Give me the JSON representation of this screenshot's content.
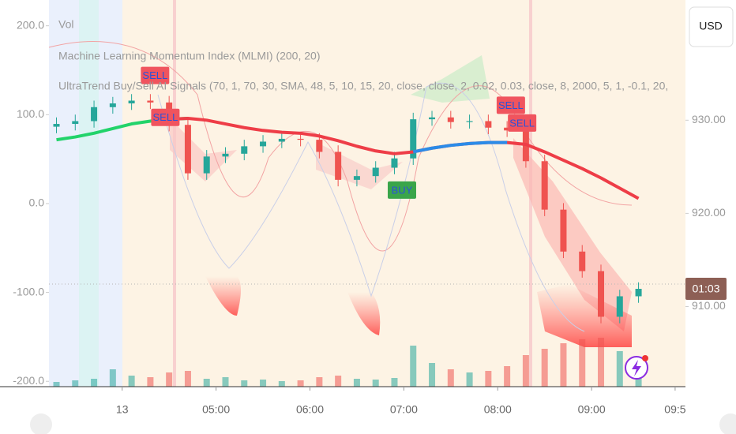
{
  "chart_data": {
    "type": "candlestick",
    "legend_lines": [
      "Vol",
      "Machine Learning Momentum Index (MLMI) (200, 20)",
      "UltraTrend Buy/Sell AI Signals (70, 1, 70, 30, SMA, 48, 5, 10, 15, 20, close, close, 2, 0.02, 0.03, close, 8, 2000, 5, 1, -0.1, 20,"
    ],
    "currency": "USD",
    "countdown": "01:03",
    "x": [
      3.3,
      3.5,
      3.7,
      3.9,
      4.1,
      4.3,
      4.5,
      4.7,
      4.9,
      5.1,
      5.3,
      5.5,
      5.7,
      5.9,
      6.1,
      6.3,
      6.5,
      6.7,
      6.9,
      7.1,
      7.3,
      7.5,
      7.7,
      7.9,
      8.1,
      8.3,
      8.5,
      8.7,
      8.9,
      9.1,
      9.3,
      9.5
    ],
    "open": [
      929.3,
      929.6,
      929.9,
      931.4,
      931.8,
      932.1,
      931.9,
      929.5,
      924.3,
      926.1,
      926.4,
      927.2,
      927.7,
      928.0,
      927.9,
      926.6,
      923.6,
      924.0,
      924.9,
      925.9,
      930.1,
      930.3,
      929.8,
      929.9,
      929.2,
      928.9,
      925.6,
      920.4,
      915.9,
      913.8,
      908.9,
      911.1
    ],
    "high": [
      930.3,
      930.6,
      932.1,
      932.5,
      932.8,
      932.8,
      932.6,
      930.2,
      926.8,
      927.1,
      927.9,
      928.4,
      928.7,
      928.7,
      928.6,
      927.3,
      924.7,
      925.6,
      926.6,
      930.8,
      931.0,
      931.0,
      930.6,
      930.6,
      929.9,
      929.6,
      926.3,
      921.1,
      916.6,
      914.5,
      911.8,
      912.6
    ],
    "low": [
      928.6,
      928.9,
      929.2,
      930.7,
      931.1,
      931.2,
      928.8,
      923.6,
      923.6,
      925.4,
      925.7,
      926.5,
      927.0,
      927.2,
      925.9,
      922.9,
      922.9,
      923.3,
      924.2,
      925.2,
      929.4,
      929.1,
      929.1,
      928.5,
      928.2,
      924.9,
      919.7,
      915.2,
      913.1,
      908.2,
      908.2,
      910.4
    ],
    "close": [
      929.6,
      929.9,
      931.4,
      931.8,
      932.1,
      931.9,
      929.5,
      924.3,
      926.1,
      926.4,
      927.2,
      927.7,
      928.0,
      927.9,
      926.6,
      923.6,
      924.0,
      924.9,
      925.9,
      930.1,
      930.3,
      929.8,
      929.9,
      929.2,
      928.9,
      925.6,
      920.4,
      915.9,
      913.8,
      908.9,
      911.1,
      911.9
    ],
    "volume": [
      6,
      8,
      10,
      22,
      14,
      12,
      18,
      20,
      10,
      12,
      8,
      9,
      7,
      8,
      12,
      14,
      10,
      9,
      11,
      52,
      30,
      22,
      18,
      20,
      26,
      40,
      48,
      55,
      60,
      62,
      45,
      38
    ],
    "up_color": "#26a69a",
    "down_color": "#ef5350",
    "lines": [
      {
        "color": "#22d36a",
        "values": [
          927.9,
          928.2,
          928.6,
          929.1,
          929.6,
          929.9,
          930.1,
          930.2,
          null,
          null,
          null,
          null,
          null,
          null,
          null,
          null,
          null,
          null,
          null,
          null,
          null,
          null,
          null,
          null,
          null,
          null,
          null,
          null,
          null,
          null,
          null,
          null
        ]
      },
      {
        "color": "#ee3d47",
        "values": [
          null,
          null,
          null,
          null,
          null,
          null,
          930.1,
          930.2,
          930.0,
          929.6,
          929.2,
          928.9,
          928.7,
          928.6,
          928.3,
          927.8,
          927.2,
          926.7,
          926.4,
          926.6,
          927.0,
          927.3,
          927.5,
          927.6,
          927.6,
          927.4,
          926.6,
          925.7,
          924.8,
          923.8,
          922.7,
          921.6
        ]
      },
      {
        "color": "#2b8be8",
        "values": [
          null,
          null,
          null,
          null,
          null,
          null,
          null,
          null,
          null,
          null,
          null,
          null,
          null,
          null,
          null,
          null,
          null,
          null,
          null,
          926.6,
          927.0,
          927.3,
          927.5,
          927.6,
          927.6,
          null,
          null,
          null,
          null,
          null,
          null,
          null
        ]
      }
    ],
    "signals": [
      {
        "text": "SELL",
        "x": 4.35,
        "y": 934.8,
        "color": "#f0545e"
      },
      {
        "text": "SELL",
        "x": 4.46,
        "y": 930.3,
        "color": "#f0545e"
      },
      {
        "text": "BUY",
        "x": 6.98,
        "y": 922.5,
        "color": "#3aa54a"
      },
      {
        "text": "SELL",
        "x": 8.14,
        "y": 931.6,
        "color": "#f0545e"
      },
      {
        "text": "SELL",
        "x": 8.26,
        "y": 929.7,
        "color": "#f0545e"
      }
    ],
    "xlim": [
      3.22,
      10.0
    ],
    "xticks": [
      {
        "value": 4,
        "label": "13"
      },
      {
        "value": 5,
        "label": "05:00"
      },
      {
        "value": 6,
        "label": "06:00"
      },
      {
        "value": 7,
        "label": "07:00"
      },
      {
        "value": 8,
        "label": "08:00"
      },
      {
        "value": 9,
        "label": "09:00"
      },
      {
        "value": 9.89,
        "label": "09:5"
      }
    ],
    "ylim": [
      -206,
      229
    ],
    "yticks": [
      {
        "value": 200,
        "label": "200.0"
      },
      {
        "value": 100,
        "label": "100.0"
      },
      {
        "value": 0,
        "label": "0.0"
      },
      {
        "value": -100,
        "label": "-100.0"
      },
      {
        "value": -200,
        "label": "-200.0"
      }
    ],
    "y2lim": [
      901.4,
      942.9
    ],
    "y2ticks": [
      {
        "value": 930,
        "label": "930.00"
      },
      {
        "value": 920,
        "label": "920.00"
      },
      {
        "value": 910,
        "label": "910.00"
      }
    ]
  }
}
